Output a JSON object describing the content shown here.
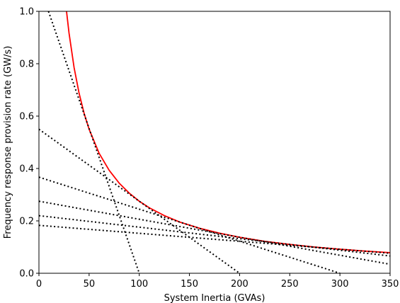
{
  "chart_data": {
    "type": "line",
    "title": "",
    "xlabel": "System Inertia (GVAs)",
    "ylabel": "Frequency response provision rate (GW/s)",
    "xlim": [
      0,
      350
    ],
    "ylim": [
      0,
      1.0
    ],
    "x_ticks": [
      0,
      50,
      100,
      150,
      200,
      250,
      300,
      350
    ],
    "y_ticks": [
      0.0,
      0.2,
      0.4,
      0.6,
      0.8,
      1.0
    ],
    "x_tick_labels": [
      "0",
      "50",
      "100",
      "150",
      "200",
      "250",
      "300",
      "350"
    ],
    "y_tick_labels": [
      "0.0",
      "0.2",
      "0.4",
      "0.6",
      "0.8",
      "1.0"
    ],
    "grid": false,
    "series": [
      {
        "style": "solid",
        "color": "#ff0000",
        "points": [
          [
            27.5,
            1.0
          ],
          [
            30,
            0.917
          ],
          [
            35,
            0.786
          ],
          [
            40,
            0.6875
          ],
          [
            45,
            0.611
          ],
          [
            50,
            0.55
          ],
          [
            60,
            0.458
          ],
          [
            70,
            0.393
          ],
          [
            80,
            0.344
          ],
          [
            90,
            0.306
          ],
          [
            100,
            0.275
          ],
          [
            110,
            0.25
          ],
          [
            125,
            0.22
          ],
          [
            140,
            0.196
          ],
          [
            160,
            0.172
          ],
          [
            180,
            0.153
          ],
          [
            200,
            0.1375
          ],
          [
            225,
            0.122
          ],
          [
            250,
            0.11
          ],
          [
            275,
            0.1
          ],
          [
            300,
            0.0917
          ],
          [
            325,
            0.0846
          ],
          [
            350,
            0.0786
          ]
        ]
      },
      {
        "style": "dotted",
        "color": "#000000",
        "points": [
          [
            9.5,
            1.0
          ],
          [
            100,
            0.0
          ]
        ]
      },
      {
        "style": "dotted",
        "color": "#000000",
        "points": [
          [
            0,
            0.55
          ],
          [
            200,
            0.0
          ]
        ]
      },
      {
        "style": "dotted",
        "color": "#000000",
        "points": [
          [
            0,
            0.367
          ],
          [
            300,
            0.0
          ]
        ]
      },
      {
        "style": "dotted",
        "color": "#000000",
        "points": [
          [
            0,
            0.275
          ],
          [
            350,
            0.0344
          ]
        ]
      },
      {
        "style": "dotted",
        "color": "#000000",
        "points": [
          [
            0,
            0.22
          ],
          [
            350,
            0.066
          ]
        ]
      },
      {
        "style": "dotted",
        "color": "#000000",
        "points": [
          [
            0,
            0.183
          ],
          [
            350,
            0.0764
          ]
        ]
      }
    ]
  }
}
